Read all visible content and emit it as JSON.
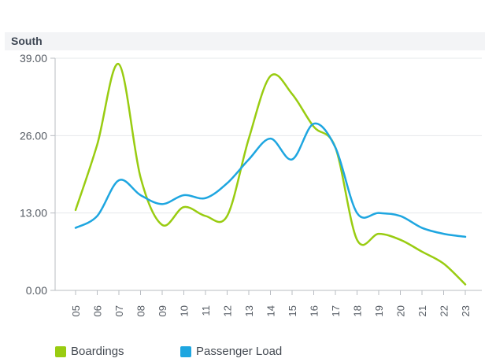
{
  "panel": {
    "title": "South"
  },
  "chart_data": {
    "type": "line",
    "title": "South",
    "xlabel": "",
    "ylabel": "",
    "x": [
      "05",
      "06",
      "07",
      "08",
      "09",
      "10",
      "11",
      "12",
      "13",
      "14",
      "15",
      "16",
      "17",
      "18",
      "19",
      "20",
      "21",
      "22",
      "23"
    ],
    "ylim": [
      0,
      39
    ],
    "yticks": [
      "0.00",
      "13.00",
      "26.00",
      "39.00"
    ],
    "grid": true,
    "legend_position": "bottom-left",
    "series": [
      {
        "name": "Boardings",
        "color": "#99cc11",
        "values": [
          13.5,
          24.5,
          38.0,
          19.0,
          11.0,
          14.0,
          12.5,
          12.5,
          25.5,
          36.0,
          33.0,
          27.5,
          24.0,
          8.5,
          9.5,
          8.5,
          6.5,
          4.5,
          1.0
        ]
      },
      {
        "name": "Passenger Load",
        "color": "#1ea6e0",
        "values": [
          10.5,
          12.5,
          18.5,
          16.0,
          14.5,
          16.0,
          15.5,
          18.0,
          22.0,
          25.5,
          22.0,
          28.0,
          24.0,
          13.0,
          13.0,
          12.5,
          10.5,
          9.5,
          9.0
        ]
      }
    ]
  }
}
